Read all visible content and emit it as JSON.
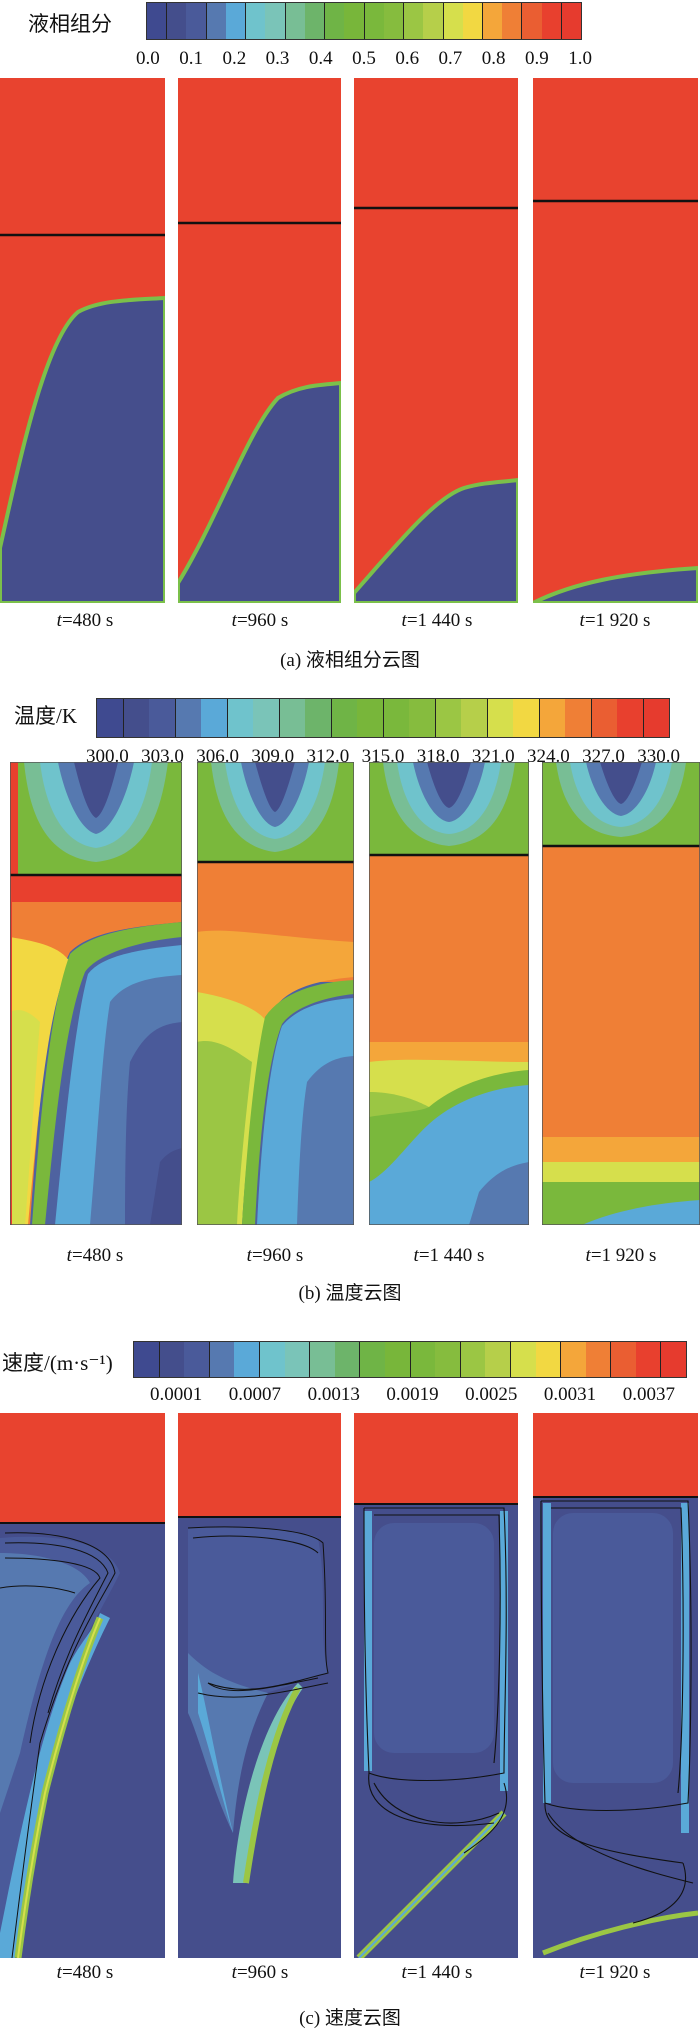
{
  "times": [
    "480 s",
    "960 s",
    "1 440 s",
    "1 920 s"
  ],
  "time_prefix": "t",
  "a": {
    "legend_title": "液相组分",
    "ticks": [
      "0.0",
      "0.1",
      "0.2",
      "0.3",
      "0.4",
      "0.5",
      "0.6",
      "0.7",
      "0.8",
      "0.9",
      "1.0"
    ],
    "caption": "(a) 液相组分云图"
  },
  "b": {
    "legend_title": "温度/K",
    "ticks": [
      "300.0",
      "303.0",
      "306.0",
      "309.0",
      "312.0",
      "315.0",
      "318.0",
      "321.0",
      "324.0",
      "327.0",
      "330.0"
    ],
    "caption": "(b) 温度云图"
  },
  "c": {
    "legend_title": "速度/(m·s⁻¹)",
    "ticks": [
      "0.0001",
      "0.0007",
      "0.0013",
      "0.0019",
      "0.0025",
      "0.0031",
      "0.0037"
    ],
    "caption": "(c) 速度云图"
  },
  "colormap": [
    "#3f4a90",
    "#444e8c",
    "#4a5a9a",
    "#5679b0",
    "#5aa9d8",
    "#6fc3cc",
    "#7ac4b8",
    "#78be95",
    "#6db46a",
    "#6fb446",
    "#78b63a",
    "#7ab83c",
    "#86bc3e",
    "#9bc644",
    "#b6cf4a",
    "#d6df4c",
    "#f2d842",
    "#f4a63a",
    "#ef7f36",
    "#ea5e32",
    "#e8402e",
    "#e63b2e"
  ],
  "colors": {
    "liquid": "#e8432f",
    "solid": "#454e8c",
    "interface_line": "#111111"
  }
}
